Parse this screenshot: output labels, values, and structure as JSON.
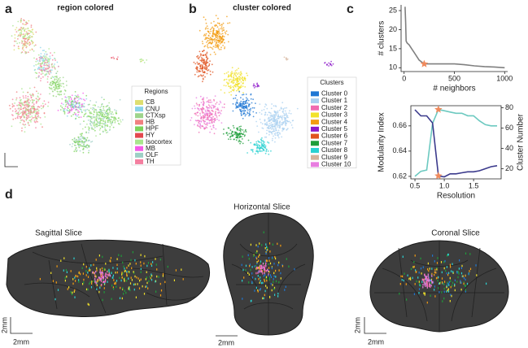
{
  "figure": {
    "panel_labels": [
      "a",
      "b",
      "c",
      "d"
    ],
    "region_map": {
      "title": "region colored",
      "legend_title": "Regions",
      "legend": [
        {
          "name": "CB",
          "color": "#dede6f"
        },
        {
          "name": "CNU",
          "color": "#8ad3e8"
        },
        {
          "name": "CTXsp",
          "color": "#9ed48c"
        },
        {
          "name": "HB",
          "color": "#f08080"
        },
        {
          "name": "HPF",
          "color": "#7dd35b"
        },
        {
          "name": "HY",
          "color": "#e3484e"
        },
        {
          "name": "Isocortex",
          "color": "#a8e68c"
        },
        {
          "name": "MB",
          "color": "#f45ce8"
        },
        {
          "name": "OLF",
          "color": "#9dcfc5"
        },
        {
          "name": "TH",
          "color": "#f47fa0"
        }
      ]
    },
    "cluster_map": {
      "title": "cluster colored",
      "legend_title": "Clusters",
      "legend": [
        {
          "name": "Cluster 0",
          "color": "#1f77d4"
        },
        {
          "name": "Cluster 1",
          "color": "#aad0f0"
        },
        {
          "name": "Cluster 2",
          "color": "#f06bb0"
        },
        {
          "name": "Cluster 3",
          "color": "#f2e22a"
        },
        {
          "name": "Cluster 4",
          "color": "#f39c12"
        },
        {
          "name": "Cluster 5",
          "color": "#8e1ac9"
        },
        {
          "name": "Cluster 6",
          "color": "#e0531f"
        },
        {
          "name": "Cluster 7",
          "color": "#1e9e3a"
        },
        {
          "name": "Cluster 8",
          "color": "#2bd2d2"
        },
        {
          "name": "Cluster 9",
          "color": "#d6b49c"
        },
        {
          "name": "Cluster 10",
          "color": "#e87de0"
        }
      ]
    },
    "slices": [
      {
        "title": "Sagittal Slice",
        "scale_bars": [
          "2mm",
          "2mm"
        ]
      },
      {
        "title": "Horizontal Slice",
        "scale_bars": [
          "2mm"
        ]
      },
      {
        "title": "Coronal Slice",
        "scale_bars": [
          "2mm",
          "2mm"
        ]
      }
    ]
  },
  "chart_data": [
    {
      "type": "line",
      "xlabel": "# neighbors",
      "ylabel": "# clusters",
      "x": [
        10,
        15,
        20,
        30,
        50,
        75,
        100,
        150,
        200,
        300,
        400,
        500,
        600,
        700,
        800,
        900,
        1000
      ],
      "values": [
        26,
        22,
        17,
        16.5,
        16,
        15,
        14,
        12,
        11,
        11,
        11,
        11,
        10.8,
        10.5,
        10.3,
        10.2,
        10
      ],
      "color": "#808080",
      "xlim": [
        -30,
        1030
      ],
      "ylim": [
        9,
        26.5
      ],
      "xticks": [
        0,
        500,
        1000
      ],
      "yticks": [
        10,
        15,
        20,
        25
      ],
      "highlight": {
        "x": 200,
        "y": 11,
        "color": "#f08a5d"
      }
    },
    {
      "type": "line",
      "xlabel": "Resolution",
      "ylabel": "Modularity Index",
      "y2label": "Cluster Number",
      "x": [
        0.5,
        0.6,
        0.7,
        0.8,
        0.9,
        1.0,
        1.1,
        1.2,
        1.3,
        1.4,
        1.5,
        1.6,
        1.7,
        1.8,
        1.9
      ],
      "series": [
        {
          "color": "#6cc9c0",
          "values": [
            0.62,
            0.624,
            0.625,
            0.662,
            0.673,
            0.672,
            0.671,
            0.67,
            0.67,
            0.668,
            0.668,
            0.664,
            0.661,
            0.66,
            0.66
          ]
        },
        {
          "color": "#3b3a8c",
          "axis": "y2",
          "values": [
            78,
            72,
            72,
            65,
            13,
            12,
            15,
            15,
            16,
            17,
            17,
            18,
            20,
            22,
            23
          ]
        }
      ],
      "xlim": [
        0.43,
        1.97
      ],
      "ylim": [
        0.618,
        0.676
      ],
      "y2lim": [
        10,
        82
      ],
      "xticks": [
        0.5,
        {
          "value": 1,
          "label": "1.0"
        },
        1.5
      ],
      "yticks": [
        0.62,
        0.64,
        0.66
      ],
      "y2ticks": [
        20,
        40,
        60,
        80
      ],
      "highlight": {
        "x": 0.9,
        "y": 0.673,
        "y2": 13,
        "color": "#f08a5d"
      }
    }
  ]
}
